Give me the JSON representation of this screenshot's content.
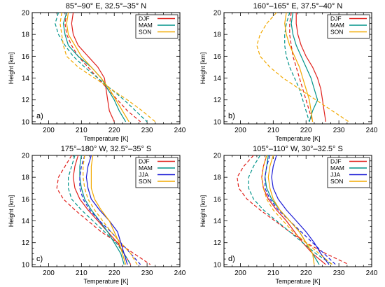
{
  "chart_data": [
    {
      "type": "line",
      "title": "85°–90° E, 32.5°–35° N",
      "panel_label": "a)",
      "xlabel": "Temperature [K]",
      "ylabel": "Height [km]",
      "xlim": [
        195,
        240
      ],
      "ylim": [
        9.8,
        20
      ],
      "xticks": [
        200,
        210,
        220,
        230,
        240
      ],
      "yticks": [
        10,
        12,
        14,
        16,
        18,
        20
      ],
      "legend": "top-right",
      "series": [
        {
          "name": "DJF",
          "color": "#e0201b",
          "style": "solid",
          "x": [
            207.5,
            207,
            207.5,
            209,
            212,
            215,
            217,
            217.5,
            218,
            218.5,
            220
          ],
          "y": [
            20,
            19,
            18,
            17,
            16,
            15,
            14,
            13,
            12,
            11,
            10
          ]
        },
        {
          "name": "DJF",
          "color": "#e0201b",
          "style": "dashed",
          "x": [
            205.5,
            205,
            205.5,
            207,
            209,
            212,
            215,
            218,
            221,
            224,
            228
          ],
          "y": [
            20,
            19,
            18,
            17,
            16,
            15,
            14,
            13,
            12,
            11,
            10
          ]
        },
        {
          "name": "MAM",
          "color": "#00938a",
          "style": "solid",
          "x": [
            205.5,
            204.5,
            205,
            206,
            209,
            213,
            216,
            218,
            220,
            221.5,
            223.5
          ],
          "y": [
            20,
            19,
            18,
            17,
            16,
            15,
            14,
            13,
            12,
            11,
            10
          ]
        },
        {
          "name": "MAM",
          "color": "#00938a",
          "style": "dashed",
          "x": [
            203,
            202,
            203,
            205,
            207.5,
            211,
            215,
            219,
            223,
            226.5,
            230
          ],
          "y": [
            20,
            19,
            18,
            17,
            16,
            15,
            14,
            13,
            12,
            11,
            10
          ]
        },
        {
          "name": "SON",
          "color": "#f2a900",
          "style": "solid",
          "x": [
            206,
            205.5,
            206,
            208,
            210,
            213,
            216,
            218.5,
            220.5,
            222.5,
            224.5
          ],
          "y": [
            20,
            19,
            18,
            17,
            16,
            15,
            14,
            13,
            12,
            11,
            10
          ]
        },
        {
          "name": "SON",
          "color": "#f2a900",
          "style": "dashed",
          "x": [
            204,
            203.5,
            204,
            204.5,
            205.5,
            209,
            214,
            219,
            224,
            228.5,
            232.5
          ],
          "y": [
            20,
            19,
            18,
            17,
            16,
            15,
            14,
            13,
            12,
            11,
            10
          ]
        }
      ]
    },
    {
      "type": "line",
      "title": "160°–165° E, 37.5°–40° N",
      "panel_label": "b)",
      "xlabel": "Temperature [K]",
      "ylabel": "Height [km]",
      "xlim": [
        195,
        240
      ],
      "ylim": [
        9.8,
        20
      ],
      "xticks": [
        200,
        210,
        220,
        230,
        240
      ],
      "yticks": [
        10,
        12,
        14,
        16,
        18,
        20
      ],
      "legend": "top-right",
      "series": [
        {
          "name": "DJF",
          "color": "#e0201b",
          "style": "solid",
          "x": [
            217,
            217,
            217.5,
            218.5,
            220,
            222,
            223.5,
            224.5,
            225,
            225.5,
            226
          ],
          "y": [
            20,
            19,
            18,
            17,
            16,
            15,
            14,
            13,
            12,
            11,
            10
          ]
        },
        {
          "name": "DJF",
          "color": "#e0201b",
          "style": "dashed",
          "x": [
            215.5,
            215,
            215,
            215.5,
            216,
            217,
            218,
            219,
            220,
            221,
            222
          ],
          "y": [
            20,
            19,
            18,
            17,
            16,
            15,
            14,
            13,
            12,
            11,
            10
          ]
        },
        {
          "name": "MAM",
          "color": "#00938a",
          "style": "solid",
          "x": [
            216,
            215.5,
            216,
            217,
            218.5,
            220,
            221.5,
            222.5,
            223.5,
            222,
            221
          ],
          "y": [
            20,
            19,
            18,
            17,
            16,
            15,
            14,
            13,
            12,
            11,
            10
          ]
        },
        {
          "name": "MAM",
          "color": "#00938a",
          "style": "dashed",
          "x": [
            215,
            214,
            213.5,
            213.5,
            214,
            215,
            216.5,
            218,
            219,
            220,
            221
          ],
          "y": [
            20,
            19,
            18,
            17,
            16,
            15,
            14,
            13,
            12,
            11,
            10
          ]
        },
        {
          "name": "SON",
          "color": "#f2a900",
          "style": "solid",
          "x": [
            214,
            213.5,
            214,
            215,
            216.5,
            218,
            219,
            220,
            221,
            221.5,
            222
          ],
          "y": [
            20,
            19,
            18,
            17,
            16,
            15,
            14,
            13,
            12,
            11,
            10
          ]
        },
        {
          "name": "SON",
          "color": "#f2a900",
          "style": "dashed",
          "x": [
            211,
            208,
            206,
            205,
            206,
            209,
            213,
            218,
            223,
            228,
            233
          ],
          "y": [
            20,
            19,
            18,
            17,
            16,
            15,
            14,
            13,
            12,
            11,
            10
          ]
        }
      ]
    },
    {
      "type": "line",
      "title": "175°–180° W, 32.5°–35° S",
      "panel_label": "c)",
      "xlabel": "Temperature [K]",
      "ylabel": "Height [km]",
      "xlim": [
        195,
        240
      ],
      "ylim": [
        9.8,
        20
      ],
      "xticks": [
        200,
        210,
        220,
        230,
        240
      ],
      "yticks": [
        10,
        12,
        14,
        16,
        18,
        20
      ],
      "legend": "top-right",
      "series": [
        {
          "name": "DJF",
          "color": "#e0201b",
          "style": "solid",
          "x": [
            209,
            208,
            207.5,
            208,
            209.5,
            212,
            215,
            218,
            221,
            223,
            225
          ],
          "y": [
            20,
            19,
            18,
            17,
            16,
            15,
            14,
            13,
            12,
            11,
            10
          ]
        },
        {
          "name": "DJF",
          "color": "#e0201b",
          "style": "dashed",
          "x": [
            207,
            205,
            203,
            202.5,
            204.5,
            208,
            212,
            216,
            221,
            226,
            231
          ],
          "y": [
            20,
            19,
            18,
            17,
            16,
            15,
            14,
            13,
            12,
            11,
            10
          ]
        },
        {
          "name": "MAM",
          "color": "#00938a",
          "style": "solid",
          "x": [
            210,
            209.5,
            209.5,
            210,
            211,
            213,
            215.5,
            218,
            220,
            222,
            223
          ],
          "y": [
            20,
            19,
            18,
            17,
            16,
            15,
            14,
            13,
            12,
            11,
            10
          ]
        },
        {
          "name": "MAM",
          "color": "#00938a",
          "style": "dashed",
          "x": [
            208,
            207,
            206,
            206,
            207,
            210,
            213.5,
            217,
            220.5,
            223,
            225
          ],
          "y": [
            20,
            19,
            18,
            17,
            16,
            15,
            14,
            13,
            12,
            11,
            10
          ]
        },
        {
          "name": "JJA",
          "color": "#1a1ad6",
          "style": "solid",
          "x": [
            213,
            212,
            211.5,
            212,
            213,
            215.5,
            218.5,
            221,
            222,
            223,
            224
          ],
          "y": [
            20,
            19,
            18,
            17,
            16,
            15,
            14,
            13,
            12,
            11,
            10
          ]
        },
        {
          "name": "JJA",
          "color": "#1a1ad6",
          "style": "dashed",
          "x": [
            211,
            210,
            209.5,
            209.5,
            210.5,
            212.5,
            215.5,
            219,
            222,
            225,
            228
          ],
          "y": [
            20,
            19,
            18,
            17,
            16,
            15,
            14,
            13,
            12,
            11,
            10
          ]
        },
        {
          "name": "SON",
          "color": "#f2a900",
          "style": "solid",
          "x": [
            213.5,
            213,
            213,
            213,
            214,
            216,
            218.5,
            220,
            221.5,
            222.5,
            223.5
          ],
          "y": [
            20,
            19,
            18,
            17,
            16,
            15,
            14,
            13,
            12,
            11,
            10
          ]
        },
        {
          "name": "SON",
          "color": "#f2a900",
          "style": "dashed",
          "x": [
            211,
            210.5,
            210.5,
            211,
            212,
            214,
            216.5,
            219,
            222,
            225,
            227
          ],
          "y": [
            20,
            19,
            18,
            17,
            16,
            15,
            14,
            13,
            12,
            11,
            10
          ]
        }
      ]
    },
    {
      "type": "line",
      "title": "105°–110° W, 30°–32.5° S",
      "panel_label": "d)",
      "xlabel": "Temperature [K]",
      "ylabel": "Height [km]",
      "xlim": [
        195,
        240
      ],
      "ylim": [
        9.8,
        20
      ],
      "xticks": [
        200,
        210,
        220,
        230,
        240
      ],
      "yticks": [
        10,
        12,
        14,
        16,
        18,
        20
      ],
      "legend": "top-right",
      "series": [
        {
          "name": "DJF",
          "color": "#e0201b",
          "style": "solid",
          "x": [
            208,
            207,
            206.5,
            207,
            208.5,
            211,
            214,
            216.5,
            219,
            222,
            226
          ],
          "y": [
            20,
            19,
            18,
            17,
            16,
            15,
            14,
            13,
            12,
            11,
            10
          ]
        },
        {
          "name": "DJF",
          "color": "#e0201b",
          "style": "dashed",
          "x": [
            204,
            201,
            199,
            199.5,
            202,
            206,
            210.5,
            215,
            220,
            226,
            233
          ],
          "y": [
            20,
            19,
            18,
            17,
            16,
            15,
            14,
            13,
            12,
            11,
            10
          ]
        },
        {
          "name": "MAM",
          "color": "#00938a",
          "style": "solid",
          "x": [
            208.5,
            208,
            207.5,
            208,
            209.5,
            212,
            215,
            218,
            220,
            222,
            224
          ],
          "y": [
            20,
            19,
            18,
            17,
            16,
            15,
            14,
            13,
            12,
            11,
            10
          ]
        },
        {
          "name": "MAM",
          "color": "#00938a",
          "style": "dashed",
          "x": [
            206,
            204,
            202.5,
            202.5,
            204,
            207,
            211,
            215,
            219,
            223,
            228
          ],
          "y": [
            20,
            19,
            18,
            17,
            16,
            15,
            14,
            13,
            12,
            11,
            10
          ]
        },
        {
          "name": "JJA",
          "color": "#1a1ad6",
          "style": "solid",
          "x": [
            211,
            210,
            209.5,
            210,
            211.5,
            214,
            217,
            220,
            222.5,
            224.5,
            227
          ],
          "y": [
            20,
            19,
            18,
            17,
            16,
            15,
            14,
            13,
            12,
            11,
            10
          ]
        },
        {
          "name": "JJA",
          "color": "#1a1ad6",
          "style": "dashed",
          "x": [
            209,
            208,
            207.5,
            207.5,
            209,
            211.5,
            215,
            218.5,
            222,
            225.5,
            229
          ],
          "y": [
            20,
            19,
            18,
            17,
            16,
            15,
            14,
            13,
            12,
            11,
            10
          ]
        },
        {
          "name": "SON",
          "color": "#f2a900",
          "style": "solid",
          "x": [
            210,
            209,
            208.5,
            209,
            210,
            212,
            215,
            218,
            220,
            222,
            222.5
          ],
          "y": [
            20,
            19,
            18,
            17,
            16,
            15,
            14,
            13,
            12,
            11,
            10
          ]
        },
        {
          "name": "SON",
          "color": "#f2a900",
          "style": "dashed",
          "x": [
            208,
            207,
            206.5,
            207,
            208,
            210,
            213,
            216,
            220,
            224,
            228
          ],
          "y": [
            20,
            19,
            18,
            17,
            16,
            15,
            14,
            13,
            12,
            11,
            10
          ]
        }
      ]
    }
  ]
}
